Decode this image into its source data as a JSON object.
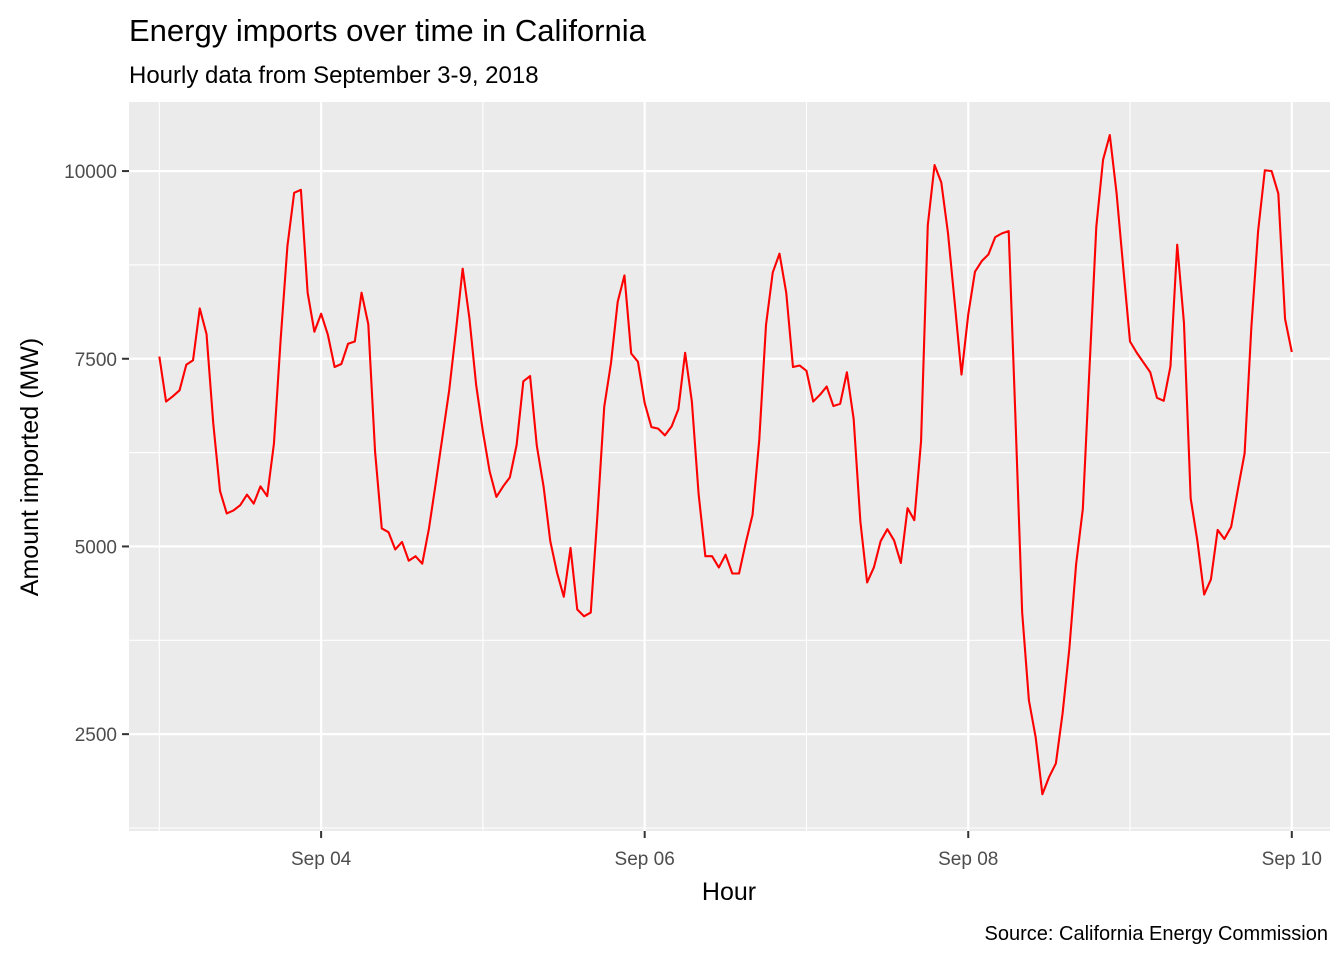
{
  "chart_data": {
    "type": "line",
    "title": "Energy imports over time in California",
    "subtitle": "Hourly data from September 3-9, 2018",
    "xlabel": "Hour",
    "ylabel": "Amount imported (MW)",
    "caption": "Source: California Energy Commission",
    "x_tick_labels": [
      "Sep 04",
      "Sep 06",
      "Sep 08",
      "Sep 10"
    ],
    "x_tick_dates": [
      "2018-09-04",
      "2018-09-06",
      "2018-09-08",
      "2018-09-10"
    ],
    "y_tick_labels": [
      "2500",
      "5000",
      "7500",
      "10000"
    ],
    "y_ticks": [
      2500,
      5000,
      7500,
      10000
    ],
    "xlim": [
      "2018-09-02T19:30",
      "2018-09-10T05:40"
    ],
    "ylim": [
      1210,
      10920
    ],
    "grid": true,
    "background": "#ebebeb",
    "line_color": "#ff0000",
    "series": [
      {
        "x_start": "2018-09-03T00:00",
        "x_step_hours": 1,
        "values": [
          7530,
          6930,
          7000,
          7080,
          7420,
          7480,
          8170,
          7830,
          6640,
          5740,
          5440,
          5480,
          5550,
          5690,
          5570,
          5800,
          5670,
          6370,
          7760,
          9000,
          9710,
          9750,
          8380,
          7860,
          8100,
          7820,
          7390,
          7430,
          7700,
          7730,
          8380,
          7960,
          6270,
          5240,
          5190,
          4960,
          5060,
          4810,
          4870,
          4770,
          5240,
          5840,
          6460,
          7080,
          7870,
          8700,
          8040,
          7150,
          6530,
          6000,
          5660,
          5800,
          5920,
          6350,
          7200,
          7270,
          6340,
          5800,
          5070,
          4650,
          4330,
          4980,
          4160,
          4070,
          4120,
          5430,
          6860,
          7440,
          8260,
          8610,
          7570,
          7460,
          6910,
          6590,
          6570,
          6480,
          6600,
          6830,
          7580,
          6930,
          5700,
          4870,
          4870,
          4720,
          4890,
          4640,
          4640,
          5050,
          5420,
          6420,
          7950,
          8650,
          8900,
          8380,
          7390,
          7410,
          7340,
          6930,
          7020,
          7130,
          6870,
          6900,
          7320,
          6700,
          5330,
          4520,
          4720,
          5070,
          5230,
          5080,
          4780,
          5510,
          5350,
          6400,
          9280,
          10080,
          9850,
          9170,
          8240,
          7290,
          8090,
          8660,
          8800,
          8890,
          9120,
          9170,
          9200,
          6720,
          4120,
          2950,
          2460,
          1700,
          1930,
          2110,
          2780,
          3640,
          4760,
          5500,
          7400,
          9260,
          10150,
          10480,
          9710,
          8710,
          7730,
          7580,
          7450,
          7320,
          6980,
          6940,
          7400,
          9020,
          7980,
          5640,
          5070,
          4360,
          4560,
          5220,
          5100,
          5260,
          5760,
          6240,
          7920,
          9200,
          10010,
          10000,
          9700,
          8030,
          7590
        ]
      }
    ]
  }
}
